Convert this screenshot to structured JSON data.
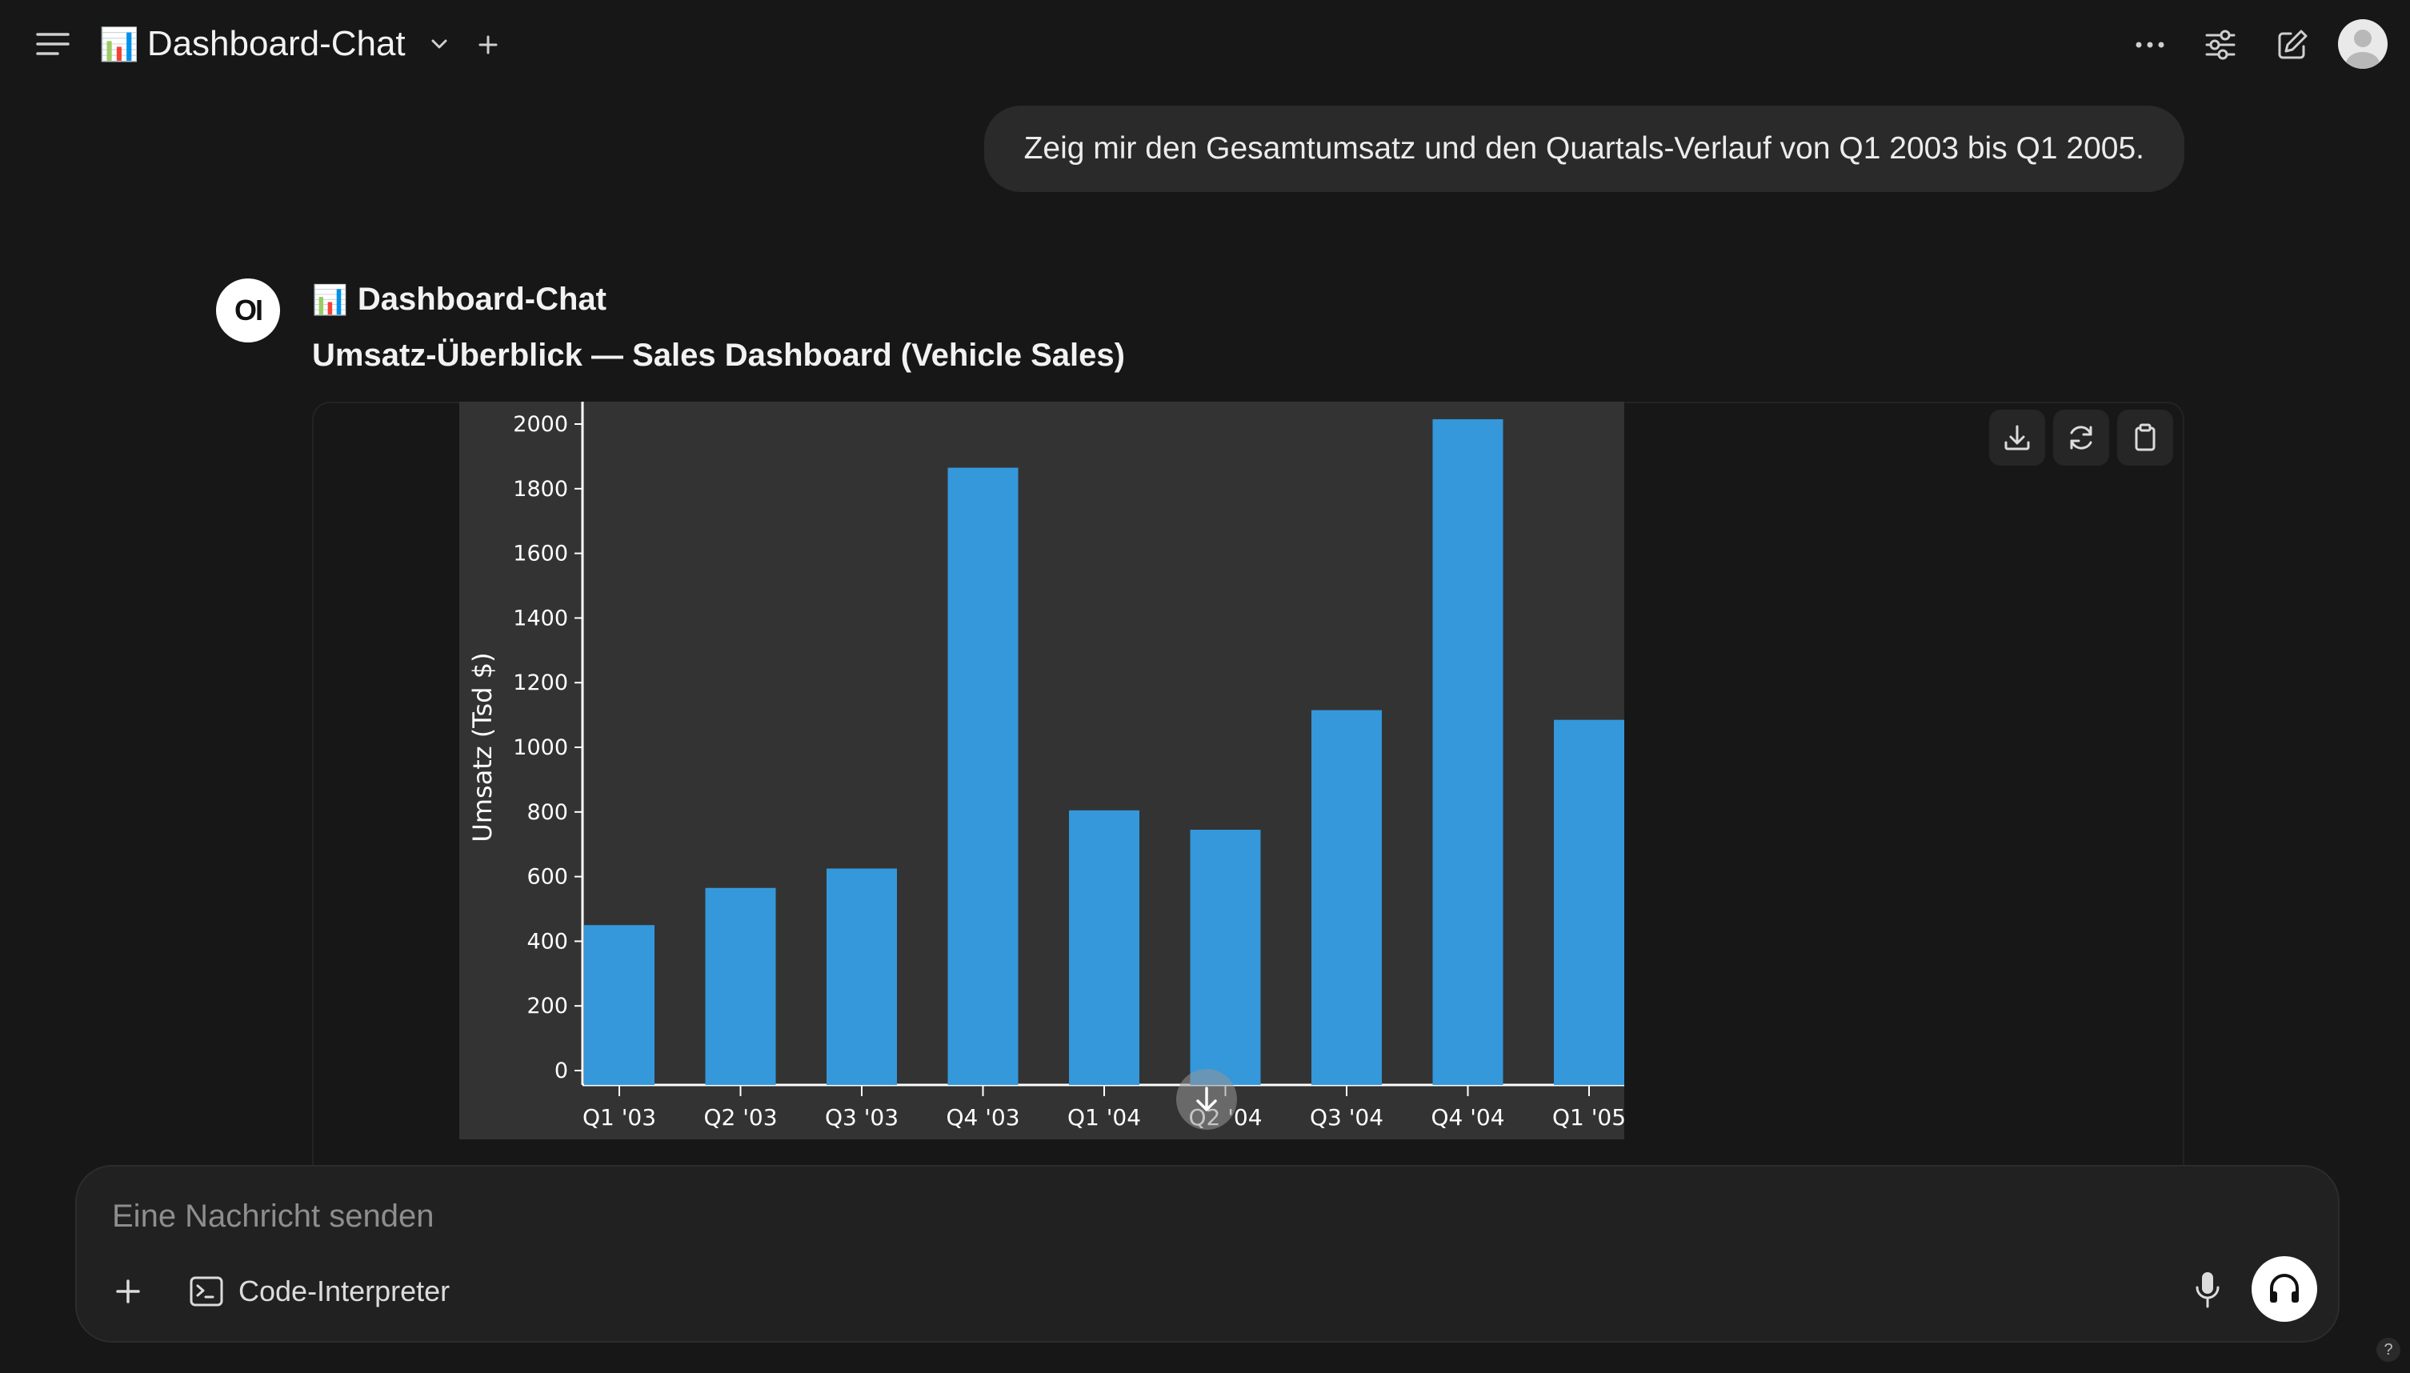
{
  "header": {
    "title_emoji": "📊",
    "title": "Dashboard-Chat",
    "icons": [
      "hamburger-menu-icon",
      "chevron-down-icon",
      "plus-icon",
      "ellipsis-icon",
      "sliders-icon",
      "edit-icon",
      "user-avatar-icon"
    ]
  },
  "chat": {
    "user_message": "Zeig mir den Gesamtumsatz und den Quartals-Verlauf von Q1 2003 bis Q1 2005.",
    "assistant": {
      "logo_text": "OI",
      "name_emoji": "📊",
      "name": "Dashboard-Chat",
      "heading": "Umsatz-Überblick — Sales Dashboard (Vehicle Sales)"
    }
  },
  "chart_data": {
    "type": "bar",
    "categories": [
      "Q1 '03",
      "Q2 '03",
      "Q3 '03",
      "Q4 '03",
      "Q1 '04",
      "Q2 '04",
      "Q3 '04",
      "Q4 '04",
      "Q1 '05"
    ],
    "values": [
      450,
      565,
      625,
      1865,
      805,
      745,
      1115,
      2015,
      1085
    ],
    "ylabel": "Umsatz (Tsd $)",
    "xlabel": "",
    "ylim": [
      0,
      2000
    ],
    "yticks": [
      0,
      200,
      400,
      600,
      800,
      1000,
      1200,
      1400,
      1600,
      1800,
      2000
    ],
    "grid": false,
    "bar_color": "#3498db",
    "background_color": "#333333"
  },
  "chart_tools": [
    "download-icon",
    "refresh-icon",
    "clipboard-icon"
  ],
  "composer": {
    "placeholder": "Eine Nachricht senden",
    "code_interpreter_label": "Code-Interpreter",
    "icons": [
      "plus-icon",
      "terminal-icon",
      "microphone-icon",
      "headphones-icon"
    ]
  },
  "help_label": "?"
}
